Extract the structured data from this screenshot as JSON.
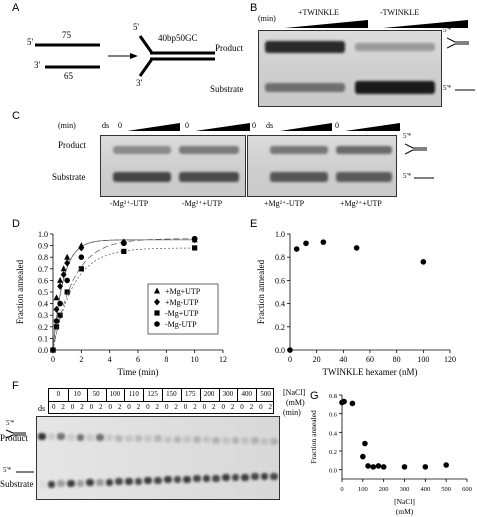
{
  "panelA": {
    "label": "A",
    "top_number": "75",
    "bottom_number": "65",
    "five_prime": "5'",
    "three_prime": "3'",
    "product_name": "40bp50GC",
    "product_five_prime": "5'",
    "product_three_prime": "3'"
  },
  "panelB": {
    "label": "B",
    "min_label": "(min)",
    "plus_label": "+TWINKLE",
    "minus_label": "-TWINKLE",
    "product_label": "Product",
    "substrate_label": "Substrate",
    "star_top": "5'*",
    "star_bottom": "5'*"
  },
  "panelC": {
    "label": "C",
    "min_label": "(min)",
    "ds": "ds",
    "zero": "0",
    "product_label": "Product",
    "substrate_label": "Substrate",
    "conditions": [
      "-Mg²⁺-UTP",
      "-Mg²⁺+UTP",
      "+Mg²⁺-UTP",
      "+Mg²⁺+UTP"
    ],
    "star_top": "5'*",
    "star_bottom": "5'*"
  },
  "panelD": {
    "label": "D",
    "chart_data": {
      "type": "scatter",
      "xlabel": "Time (min)",
      "ylabel": "Fraction annealed",
      "xlim": [
        0,
        12
      ],
      "ylim": [
        0,
        1.0
      ],
      "xticks": [
        "0",
        "2",
        "4",
        "6",
        "8",
        "10",
        "12"
      ],
      "yticks": [
        "0.0",
        "0.1",
        "0.2",
        "0.3",
        "0.4",
        "0.5",
        "0.6",
        "0.7",
        "0.8",
        "0.9",
        "1.0"
      ],
      "legend_position": "center-right",
      "series": [
        {
          "name": "+Mg+UTP",
          "marker": "triangle",
          "x": [
            0,
            0.25,
            0.5,
            0.75,
            1,
            2,
            5,
            10
          ],
          "y": [
            0.0,
            0.45,
            0.6,
            0.7,
            0.8,
            0.9,
            0.93,
            0.95
          ]
        },
        {
          "name": "+Mg-UTP",
          "marker": "diamond",
          "x": [
            0,
            0.25,
            0.5,
            0.75,
            1,
            2,
            5,
            10
          ],
          "y": [
            0.0,
            0.35,
            0.55,
            0.65,
            0.75,
            0.88,
            0.93,
            0.95
          ]
        },
        {
          "name": "-Mg+UTP",
          "marker": "square",
          "x": [
            0,
            0.25,
            0.5,
            1,
            2,
            5,
            10
          ],
          "y": [
            0.0,
            0.2,
            0.3,
            0.5,
            0.7,
            0.85,
            0.88
          ]
        },
        {
          "name": "-Mg-UTP",
          "marker": "circle",
          "x": [
            0,
            0.25,
            0.5,
            1,
            2,
            5,
            10
          ],
          "y": [
            0.0,
            0.25,
            0.4,
            0.6,
            0.8,
            0.92,
            0.96
          ]
        }
      ]
    }
  },
  "panelE": {
    "label": "E",
    "chart_data": {
      "type": "scatter",
      "xlabel": "TWINKLE hexamer (nM)",
      "ylabel": "Fraction annealed",
      "xlim": [
        0,
        120
      ],
      "ylim": [
        0,
        1.0
      ],
      "xticks": [
        "0",
        "20",
        "40",
        "60",
        "80",
        "100",
        "120"
      ],
      "yticks": [
        "0.0",
        "0.2",
        "0.4",
        "0.6",
        "0.8",
        "1.0"
      ],
      "series": [
        {
          "x": [
            0,
            5,
            12,
            25,
            50,
            100
          ],
          "y": [
            0.0,
            0.87,
            0.92,
            0.93,
            0.88,
            0.76
          ]
        }
      ]
    }
  },
  "panelF": {
    "label": "F",
    "ds": "ds",
    "nacl_values": [
      "0",
      "10",
      "50",
      "100",
      "110",
      "125",
      "150",
      "175",
      "200",
      "300",
      "400",
      "500"
    ],
    "nacl_label": "[NaCl]",
    "mm_label": "(mM)",
    "time_values": [
      "0",
      "2"
    ],
    "min_label": "(min)",
    "product_label": "Product",
    "substrate_label": "Substrate",
    "star_top": "5'*",
    "star_bottom": "5'*"
  },
  "panelG": {
    "label": "G",
    "chart_data": {
      "type": "scatter",
      "xlabel": "[NaCl]",
      "xlabel2": "(mM)",
      "ylabel": "Fraction annealed",
      "xlim": [
        0,
        600
      ],
      "ylim": [
        -0.1,
        0.8
      ],
      "xticks": [
        "0",
        "100",
        "200",
        "300",
        "400",
        "500",
        "600"
      ],
      "yticks": [
        "0.0",
        "0.2",
        "0.4",
        "0.6",
        "0.8"
      ],
      "series": [
        {
          "x": [
            0,
            10,
            50,
            100,
            110,
            125,
            150,
            175,
            200,
            300,
            400,
            500
          ],
          "y": [
            0.72,
            0.73,
            0.71,
            0.14,
            0.28,
            0.04,
            0.03,
            0.04,
            0.03,
            0.03,
            0.03,
            0.05
          ]
        }
      ]
    }
  }
}
